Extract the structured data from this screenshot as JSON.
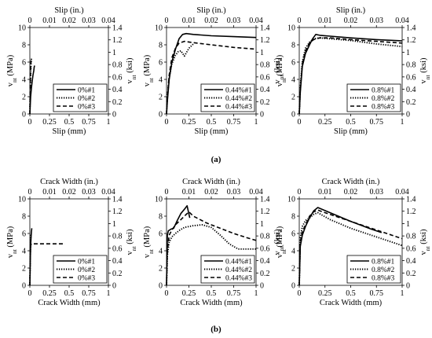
{
  "captions": [
    "(a)",
    "(b)"
  ],
  "chart_data": [
    {
      "type": "line",
      "xlabel": "Slip (mm)",
      "x2label": "Slip (in.)",
      "ylabel": "v",
      "ylabel_sub": "nt",
      "ylabel_unit": " (MPa)",
      "y2label": "v",
      "y2label_sub": "nt",
      "y2label_unit": " (ksi)",
      "xlim": [
        0,
        1
      ],
      "ylim": [
        0,
        10
      ],
      "xticks": [
        "0",
        "0.25",
        "0.5",
        "0.75",
        "1"
      ],
      "yticks": [
        "0",
        "2",
        "4",
        "6",
        "8",
        "10"
      ],
      "x2ticks": [
        "0",
        "0.01",
        "0.02",
        "0.03",
        "0.04"
      ],
      "y2ticks": [
        "0",
        "0.2",
        "0.4",
        "0.6",
        "0.8",
        "1",
        "1.2",
        "1.4"
      ],
      "legend_position": "bottom-right",
      "series": [
        {
          "name": "0%#1",
          "style": "solid",
          "x": [
            0,
            0.005,
            0.01,
            0.02,
            0.03,
            0.04,
            0.05,
            0.055,
            0.06
          ],
          "y": [
            0,
            1,
            2,
            3,
            3.8,
            4.5,
            5.0,
            5.4,
            5.6
          ]
        },
        {
          "name": "0%#2",
          "style": "dotted",
          "x": [
            0,
            0.003,
            0.006,
            0.01,
            0.015,
            0.02
          ],
          "y": [
            0,
            1.5,
            3,
            4.5,
            5.8,
            6.4
          ]
        },
        {
          "name": "0%#3",
          "style": "dashed",
          "x": [
            0,
            0.003,
            0.006,
            0.01,
            0.015
          ],
          "y": [
            0,
            2,
            3.5,
            5,
            6.2
          ]
        }
      ]
    },
    {
      "type": "line",
      "xlabel": "Slip (mm)",
      "x2label": "Slip (in.)",
      "ylabel": "v",
      "ylabel_sub": "nt",
      "ylabel_unit": " (MPa)",
      "y2label": "v",
      "y2label_sub": "nt",
      "y2label_unit": " (ksi)",
      "xlim": [
        0,
        1
      ],
      "ylim": [
        0,
        10
      ],
      "xticks": [
        "0",
        "0.25",
        "0.5",
        "0.75",
        "1"
      ],
      "yticks": [
        "0",
        "2",
        "4",
        "6",
        "8",
        "10"
      ],
      "x2ticks": [
        "0",
        "0.01",
        "0.02",
        "0.03",
        "0.04"
      ],
      "y2ticks": [
        "0",
        "0.2",
        "0.4",
        "0.6",
        "0.8",
        "1",
        "1.2",
        "1.4"
      ],
      "legend_position": "bottom-right",
      "series": [
        {
          "name": "0.44%#1",
          "style": "solid",
          "x": [
            0,
            0.01,
            0.03,
            0.06,
            0.1,
            0.14,
            0.18,
            0.22,
            0.3,
            0.5,
            0.75,
            1.0
          ],
          "y": [
            0,
            1.5,
            4.0,
            6.0,
            7.5,
            8.7,
            9.2,
            9.3,
            9.2,
            9.05,
            8.95,
            8.85
          ]
        },
        {
          "name": "0.44%#2",
          "style": "dotted",
          "x": [
            0,
            0.01,
            0.03,
            0.06,
            0.1,
            0.13,
            0.16,
            0.2,
            0.25,
            0.3
          ],
          "y": [
            0,
            2.0,
            4.2,
            5.8,
            6.8,
            7.2,
            7.3,
            6.7,
            7.6,
            8.1
          ]
        },
        {
          "name": "0.44%#3",
          "style": "dashed",
          "x": [
            0,
            0.01,
            0.03,
            0.06,
            0.1,
            0.14,
            0.2,
            0.3,
            0.5,
            0.75,
            1.0
          ],
          "y": [
            0,
            2.0,
            4.5,
            6.5,
            7.6,
            8.2,
            8.4,
            8.25,
            8.0,
            7.7,
            7.5
          ]
        }
      ]
    },
    {
      "type": "line",
      "xlabel": "Slip (mm)",
      "x2label": "Slip (in.)",
      "ylabel": "v",
      "ylabel_sub": "nt",
      "ylabel_unit": " (MPa)",
      "y2label": "v",
      "y2label_sub": "nt",
      "y2label_unit": " (ksi)",
      "xlim": [
        0,
        1
      ],
      "ylim": [
        0,
        10
      ],
      "xticks": [
        "0",
        "0.25",
        "0.5",
        "0.75",
        "1"
      ],
      "yticks": [
        "0",
        "2",
        "4",
        "6",
        "8",
        "10"
      ],
      "x2ticks": [
        "0",
        "0.01",
        "0.02",
        "0.03",
        "0.04"
      ],
      "y2ticks": [
        "0",
        "0.2",
        "0.4",
        "0.6",
        "0.8",
        "1",
        "1.2",
        "1.4"
      ],
      "legend_position": "bottom-right",
      "series": [
        {
          "name": "0.8%#1",
          "style": "solid",
          "x": [
            0,
            0.01,
            0.03,
            0.06,
            0.1,
            0.13,
            0.16,
            0.2,
            0.3,
            0.5,
            0.75,
            1.0
          ],
          "y": [
            0,
            2.5,
            5.5,
            7.0,
            8.0,
            8.7,
            9.2,
            9.1,
            9.0,
            8.8,
            8.6,
            8.45
          ]
        },
        {
          "name": "0.8%#2",
          "style": "dotted",
          "x": [
            0,
            0.01,
            0.03,
            0.06,
            0.1,
            0.14,
            0.2,
            0.3,
            0.5,
            0.75,
            1.0
          ],
          "y": [
            0,
            3.0,
            6.0,
            7.6,
            8.3,
            8.7,
            8.8,
            8.7,
            8.5,
            8.1,
            7.8
          ]
        },
        {
          "name": "0.8%#3",
          "style": "dashed",
          "x": [
            0,
            0.01,
            0.03,
            0.06,
            0.1,
            0.14,
            0.2,
            0.3,
            0.5,
            0.75,
            1.0
          ],
          "y": [
            0,
            2.8,
            5.8,
            7.3,
            8.2,
            8.6,
            8.8,
            8.8,
            8.6,
            8.4,
            8.2
          ]
        }
      ]
    },
    {
      "type": "line",
      "xlabel": "Crack Width (mm)",
      "x2label": "Crack Width (in.)",
      "ylabel": "v",
      "ylabel_sub": "nt",
      "ylabel_unit": " (MPa)",
      "y2label": "v",
      "y2label_sub": "nt",
      "y2label_unit": " (ksi)",
      "xlim": [
        0,
        1
      ],
      "ylim": [
        0,
        10
      ],
      "xticks": [
        "0",
        "0.25",
        "0.5",
        "0.75",
        "1"
      ],
      "yticks": [
        "0",
        "2",
        "4",
        "6",
        "8",
        "10"
      ],
      "x2ticks": [
        "0",
        "0.01",
        "0.02",
        "0.03",
        "0.04"
      ],
      "y2ticks": [
        "0",
        "0.2",
        "0.4",
        "0.6",
        "0.8",
        "1",
        "1.2",
        "1.4"
      ],
      "legend_position": "bottom-right",
      "series": [
        {
          "name": "0%#1",
          "style": "solid",
          "x": [
            0,
            0.003,
            0.006,
            0.01,
            0.015,
            0.02,
            0.025
          ],
          "y": [
            0,
            1.5,
            3,
            4.5,
            5.5,
            6.2,
            6.6
          ]
        },
        {
          "name": "0%#2",
          "style": "dotted",
          "x": [
            0,
            0.003,
            0.006,
            0.01,
            0.015
          ],
          "y": [
            0,
            1.8,
            3.5,
            5,
            6.0
          ]
        },
        {
          "name": "0%#3",
          "style": "dashed",
          "x": [
            0,
            0.003,
            0.006,
            0.01,
            0.02,
            0.1,
            0.2,
            0.3,
            0.4,
            0.45
          ],
          "y": [
            0,
            2,
            3.5,
            4.6,
            4.8,
            4.8,
            4.8,
            4.8,
            4.8,
            4.8
          ]
        }
      ]
    },
    {
      "type": "line",
      "xlabel": "Crack Width (mm)",
      "x2label": "Crack Width (in.)",
      "ylabel": "v",
      "ylabel_sub": "nt",
      "ylabel_unit": " (MPa)",
      "y2label": "v",
      "y2label_sub": "nt",
      "y2label_unit": " (ksi)",
      "xlim": [
        0,
        1
      ],
      "ylim": [
        0,
        10
      ],
      "xticks": [
        "0",
        "0.25",
        "0.5",
        "0.75",
        "1"
      ],
      "yticks": [
        "0",
        "2",
        "4",
        "6",
        "8",
        "10"
      ],
      "x2ticks": [
        "0",
        "0.01",
        "0.02",
        "0.03",
        "0.04"
      ],
      "y2ticks": [
        "0",
        "0.2",
        "0.4",
        "0.6",
        "0.8",
        "1",
        "1.2",
        "1.4"
      ],
      "legend_position": "bottom-right",
      "series": [
        {
          "name": "0.44%#1",
          "style": "solid",
          "x": [
            0,
            0.01,
            0.02,
            0.05,
            0.08,
            0.12,
            0.16,
            0.2,
            0.23,
            0.26
          ],
          "y": [
            0,
            5.8,
            6.3,
            6.5,
            6.6,
            7.5,
            8.3,
            8.8,
            9.2,
            7.8
          ]
        },
        {
          "name": "0.44%#2",
          "style": "dotted",
          "x": [
            0,
            0.01,
            0.03,
            0.06,
            0.1,
            0.15,
            0.2,
            0.3,
            0.4,
            0.5,
            0.6,
            0.7,
            0.8,
            1.0
          ],
          "y": [
            0,
            3.5,
            5.0,
            5.6,
            6.0,
            6.4,
            6.7,
            6.9,
            7.0,
            6.7,
            5.8,
            4.8,
            4.2,
            4.2
          ]
        },
        {
          "name": "0.44%#3",
          "style": "dashed",
          "x": [
            0,
            0.01,
            0.03,
            0.06,
            0.1,
            0.15,
            0.2,
            0.25,
            0.3,
            0.45,
            0.6,
            0.75,
            0.9,
            1.0
          ],
          "y": [
            0,
            4.0,
            5.8,
            6.4,
            7.0,
            7.5,
            8.0,
            8.5,
            8.0,
            7.2,
            6.6,
            6.0,
            5.5,
            5.2
          ]
        }
      ]
    },
    {
      "type": "line",
      "xlabel": "Crack Width (mm)",
      "x2label": "Crack Width (in.)",
      "ylabel": "v",
      "ylabel_sub": "nt",
      "ylabel_unit": " (MPa)",
      "y2label": "v",
      "y2label_sub": "nt",
      "y2label_unit": " (ksi)",
      "xlim": [
        0,
        1
      ],
      "ylim": [
        0,
        10
      ],
      "xticks": [
        "0",
        "0.25",
        "0.5",
        "0.75",
        "1"
      ],
      "yticks": [
        "0",
        "2",
        "4",
        "6",
        "8",
        "10"
      ],
      "x2ticks": [
        "0",
        "0.01",
        "0.02",
        "0.03",
        "0.04"
      ],
      "y2ticks": [
        "0",
        "0.2",
        "0.4",
        "0.6",
        "0.8",
        "1",
        "1.2",
        "1.4"
      ],
      "legend_position": "bottom-right",
      "series": [
        {
          "name": "0.8%#1",
          "style": "solid",
          "x": [
            0,
            0.01,
            0.03,
            0.06,
            0.1,
            0.14,
            0.18,
            0.3,
            0.5,
            0.7,
            0.8
          ],
          "y": [
            0,
            4.5,
            5.8,
            6.8,
            7.8,
            8.6,
            9.0,
            8.4,
            7.4,
            6.5,
            6.1
          ]
        },
        {
          "name": "0.8%#2",
          "style": "dotted",
          "x": [
            0,
            0.01,
            0.03,
            0.06,
            0.1,
            0.14,
            0.18,
            0.3,
            0.5,
            0.7,
            0.9,
            1.0
          ],
          "y": [
            0,
            5.5,
            6.8,
            7.5,
            7.8,
            8.2,
            8.4,
            7.6,
            6.6,
            5.8,
            5.0,
            4.6
          ]
        },
        {
          "name": "0.8%#3",
          "style": "dashed",
          "x": [
            0,
            0.01,
            0.03,
            0.06,
            0.1,
            0.14,
            0.18,
            0.3,
            0.5,
            0.7,
            0.9,
            1.0
          ],
          "y": [
            0,
            5.0,
            6.2,
            7.0,
            8.0,
            8.5,
            8.7,
            8.2,
            7.4,
            6.6,
            5.8,
            5.4
          ]
        }
      ]
    }
  ]
}
